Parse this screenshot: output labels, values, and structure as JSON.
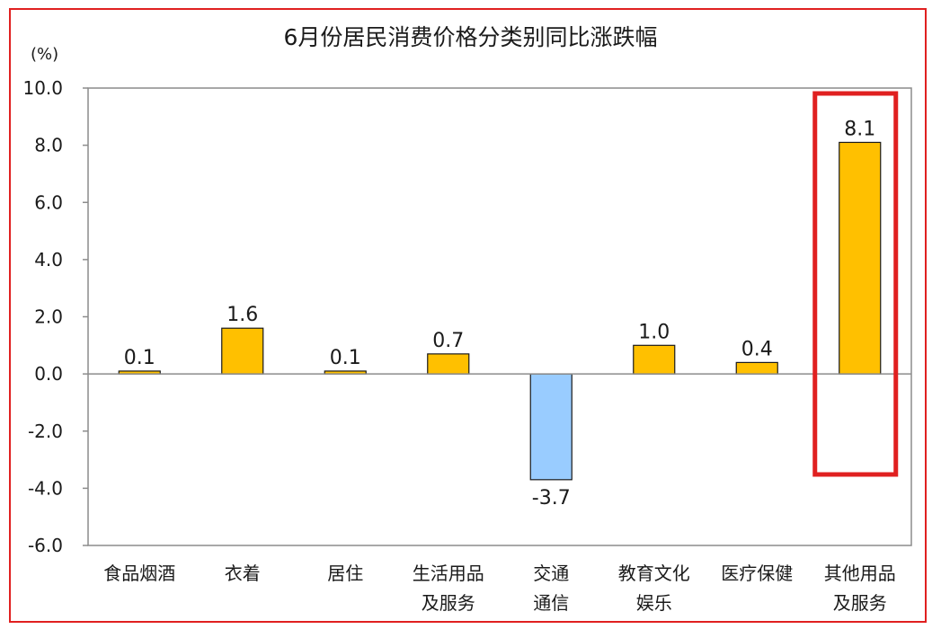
{
  "unit_label": "(%)",
  "colors": {
    "positive_bar": "#ffc000",
    "negative_bar": "#99ccff",
    "bar_outline": "#1a1a1a",
    "highlight": "#e02020",
    "frame": "#e02020",
    "axis": "#8c8c8c"
  },
  "highlight": {
    "category_index": 7,
    "color": "#e02020"
  },
  "chart_data": {
    "type": "bar",
    "title": "6月份居民消费价格分类别同比涨跌幅",
    "xlabel": "",
    "ylabel": "(%)",
    "ylim": [
      -6.0,
      10.0
    ],
    "yticks": [
      10.0,
      8.0,
      6.0,
      4.0,
      2.0,
      0.0,
      -2.0,
      -4.0,
      -6.0
    ],
    "ytick_labels": [
      "10.0",
      "8.0",
      "6.0",
      "4.0",
      "2.0",
      "0.0",
      "-2.0",
      "-4.0",
      "-6.0"
    ],
    "grid": false,
    "legend": "none",
    "categories": [
      [
        "食品烟酒"
      ],
      [
        "衣着"
      ],
      [
        "居住"
      ],
      [
        "生活用品",
        "及服务"
      ],
      [
        "交通",
        "通信"
      ],
      [
        "教育文化",
        "娱乐"
      ],
      [
        "医疗保健"
      ],
      [
        "其他用品",
        "及服务"
      ]
    ],
    "values": [
      0.1,
      1.6,
      0.1,
      0.7,
      -3.7,
      1.0,
      0.4,
      8.1
    ],
    "value_labels": [
      "0.1",
      "1.6",
      "0.1",
      "0.7",
      "-3.7",
      "1.0",
      "0.4",
      "8.1"
    ]
  }
}
